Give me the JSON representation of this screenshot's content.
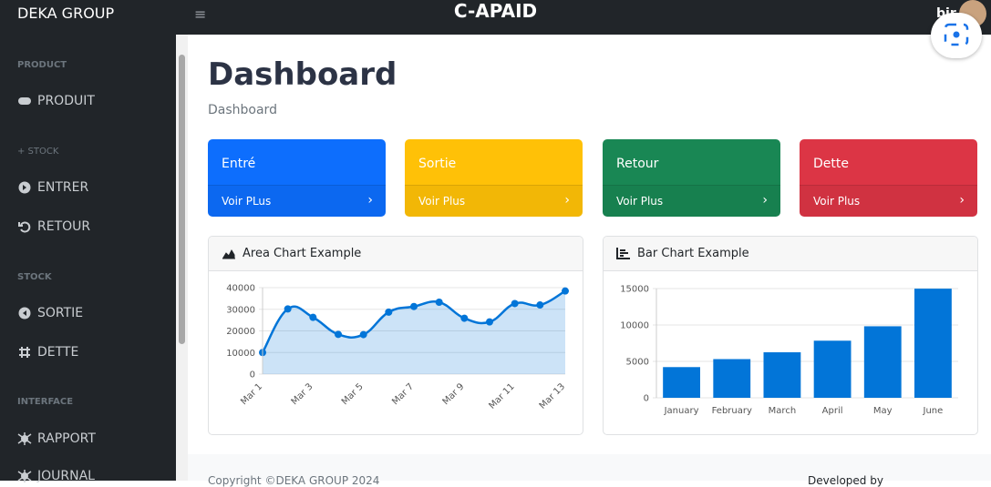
{
  "navbar": {
    "brand": "DEKA GROUP",
    "toggle": "≡",
    "title": "C-APAID",
    "greeting": "bjr"
  },
  "sidebar": {
    "sections": [
      {
        "heading": "PRODUCT",
        "items": [
          "PRODUIT"
        ]
      },
      {
        "heading": "+ STOCK",
        "items": [
          "ENTRER",
          "RETOUR"
        ]
      },
      {
        "heading": "STOCK",
        "items": [
          "SORTIE",
          "DETTE"
        ]
      },
      {
        "heading": "INTERFACE",
        "items": [
          "RAPPORT",
          "JOURNAL"
        ]
      }
    ]
  },
  "page": {
    "title": "Dashboard",
    "breadcrumb": "Dashboard"
  },
  "cards": [
    {
      "title": "Entré",
      "link": "Voir PLus",
      "color": "#0d6efd"
    },
    {
      "title": "Sortie",
      "link": "Voir Plus",
      "color": "#ffc107"
    },
    {
      "title": "Retour",
      "link": "Voir Plus",
      "color": "#198754"
    },
    {
      "title": "Dette",
      "link": "Voir Plus",
      "color": "#dc3545"
    }
  ],
  "chart_data": [
    {
      "type": "area",
      "title": "Area Chart Example",
      "categories": [
        "Mar 1",
        null,
        "Mar 3",
        null,
        "Mar 5",
        null,
        "Mar 7",
        null,
        "Mar 9",
        null,
        "Mar 11",
        null,
        "Mar 13"
      ],
      "values": [
        10000,
        30162,
        26263,
        18394,
        18287,
        28682,
        31274,
        33259,
        25849,
        24159,
        32651,
        31984,
        38451
      ],
      "color": "#0275d8",
      "ylim": [
        0,
        40000
      ],
      "yticks": [
        0,
        10000,
        20000,
        30000,
        40000
      ],
      "grid": true
    },
    {
      "type": "bar",
      "title": "Bar Chart Example",
      "categories": [
        "January",
        "February",
        "March",
        "April",
        "May",
        "June"
      ],
      "values": [
        4215,
        5312,
        6251,
        7841,
        9821,
        14984
      ],
      "color": "#0275d8",
      "ylim": [
        0,
        15000
      ],
      "yticks": [
        0,
        5000,
        10000,
        15000
      ],
      "grid": true
    }
  ],
  "footer": {
    "copyright": "Copyright ©DEKA GROUP 2024",
    "credit": "Developed by"
  }
}
